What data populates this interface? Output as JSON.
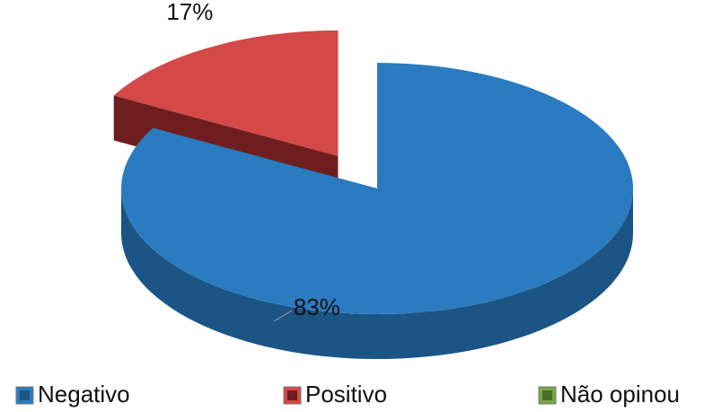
{
  "chart_data": {
    "type": "pie",
    "categories": [
      "Negativo",
      "Positivo",
      "Não opinou"
    ],
    "values": [
      83,
      17,
      0
    ],
    "value_labels": [
      "83%",
      "17%",
      null
    ],
    "colors": [
      "#2a7bc0",
      "#d44848",
      "#76a843"
    ],
    "side_colors": [
      "#1a5585",
      "#6e1e1e",
      "#4a6e28"
    ],
    "exploded": [
      false,
      true,
      false
    ],
    "legend": "bottom"
  }
}
